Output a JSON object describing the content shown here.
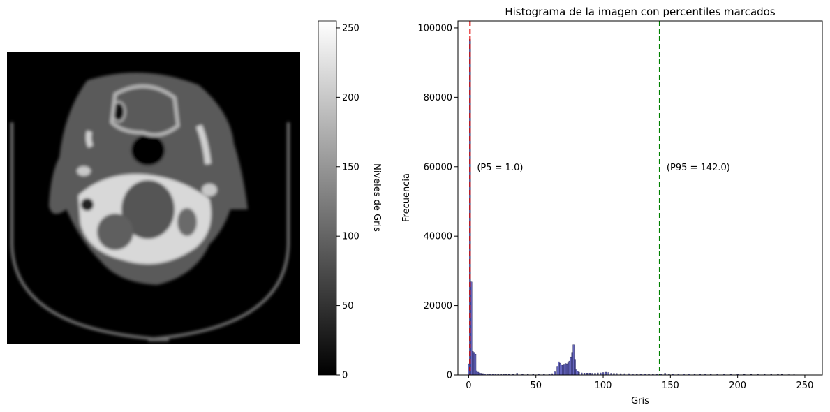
{
  "chart_data": [
    {
      "type": "image",
      "colorbar": {
        "label": "Niveles de Gris",
        "range": [
          0,
          255
        ],
        "ticks": [
          0,
          50,
          100,
          150,
          200,
          250
        ],
        "colormap": "gray"
      }
    },
    {
      "type": "bar",
      "title": "Histograma de la imagen con percentiles marcados",
      "xlabel": "Gris",
      "ylabel": "Frecuencia",
      "xlim": [
        -8,
        263
      ],
      "ylim": [
        0,
        102000
      ],
      "xticks": [
        0,
        50,
        100,
        150,
        200,
        250
      ],
      "yticks": [
        0,
        20000,
        40000,
        60000,
        80000,
        100000
      ],
      "bar_color": "#4b4bb4",
      "bar_edge": "#1a1a4a",
      "bins": [
        {
          "x": 0,
          "y": 3200
        },
        {
          "x": 1,
          "y": 96700
        },
        {
          "x": 2,
          "y": 26800
        },
        {
          "x": 3,
          "y": 7000
        },
        {
          "x": 4,
          "y": 6500
        },
        {
          "x": 5,
          "y": 6000
        },
        {
          "x": 6,
          "y": 1200
        },
        {
          "x": 7,
          "y": 800
        },
        {
          "x": 8,
          "y": 600
        },
        {
          "x": 9,
          "y": 500
        },
        {
          "x": 10,
          "y": 400
        },
        {
          "x": 11,
          "y": 400
        },
        {
          "x": 12,
          "y": 350
        },
        {
          "x": 14,
          "y": 300
        },
        {
          "x": 16,
          "y": 300
        },
        {
          "x": 18,
          "y": 250
        },
        {
          "x": 20,
          "y": 250
        },
        {
          "x": 22,
          "y": 250
        },
        {
          "x": 24,
          "y": 200
        },
        {
          "x": 26,
          "y": 200
        },
        {
          "x": 28,
          "y": 200
        },
        {
          "x": 30,
          "y": 200
        },
        {
          "x": 33,
          "y": 200
        },
        {
          "x": 36,
          "y": 500
        },
        {
          "x": 40,
          "y": 200
        },
        {
          "x": 44,
          "y": 200
        },
        {
          "x": 48,
          "y": 200
        },
        {
          "x": 52,
          "y": 200
        },
        {
          "x": 56,
          "y": 250
        },
        {
          "x": 60,
          "y": 300
        },
        {
          "x": 62,
          "y": 400
        },
        {
          "x": 64,
          "y": 900
        },
        {
          "x": 66,
          "y": 2500
        },
        {
          "x": 67,
          "y": 3800
        },
        {
          "x": 68,
          "y": 3400
        },
        {
          "x": 69,
          "y": 3000
        },
        {
          "x": 70,
          "y": 2800
        },
        {
          "x": 71,
          "y": 3100
        },
        {
          "x": 72,
          "y": 3300
        },
        {
          "x": 73,
          "y": 3200
        },
        {
          "x": 74,
          "y": 3500
        },
        {
          "x": 75,
          "y": 4000
        },
        {
          "x": 76,
          "y": 5200
        },
        {
          "x": 77,
          "y": 6500
        },
        {
          "x": 78,
          "y": 8700
        },
        {
          "x": 79,
          "y": 4500
        },
        {
          "x": 80,
          "y": 1500
        },
        {
          "x": 81,
          "y": 1000
        },
        {
          "x": 82,
          "y": 800
        },
        {
          "x": 84,
          "y": 600
        },
        {
          "x": 86,
          "y": 550
        },
        {
          "x": 88,
          "y": 550
        },
        {
          "x": 90,
          "y": 550
        },
        {
          "x": 92,
          "y": 500
        },
        {
          "x": 94,
          "y": 500
        },
        {
          "x": 96,
          "y": 600
        },
        {
          "x": 98,
          "y": 600
        },
        {
          "x": 100,
          "y": 700
        },
        {
          "x": 102,
          "y": 800
        },
        {
          "x": 104,
          "y": 700
        },
        {
          "x": 106,
          "y": 500
        },
        {
          "x": 108,
          "y": 450
        },
        {
          "x": 110,
          "y": 450
        },
        {
          "x": 113,
          "y": 400
        },
        {
          "x": 116,
          "y": 400
        },
        {
          "x": 119,
          "y": 400
        },
        {
          "x": 122,
          "y": 350
        },
        {
          "x": 125,
          "y": 350
        },
        {
          "x": 128,
          "y": 350
        },
        {
          "x": 131,
          "y": 350
        },
        {
          "x": 134,
          "y": 300
        },
        {
          "x": 137,
          "y": 300
        },
        {
          "x": 140,
          "y": 300
        },
        {
          "x": 143,
          "y": 300
        },
        {
          "x": 146,
          "y": 500
        },
        {
          "x": 149,
          "y": 300
        },
        {
          "x": 152,
          "y": 250
        },
        {
          "x": 156,
          "y": 250
        },
        {
          "x": 160,
          "y": 250
        },
        {
          "x": 164,
          "y": 250
        },
        {
          "x": 168,
          "y": 200
        },
        {
          "x": 172,
          "y": 200
        },
        {
          "x": 176,
          "y": 200
        },
        {
          "x": 180,
          "y": 200
        },
        {
          "x": 185,
          "y": 200
        },
        {
          "x": 190,
          "y": 200
        },
        {
          "x": 195,
          "y": 200
        },
        {
          "x": 200,
          "y": 200
        },
        {
          "x": 205,
          "y": 150
        },
        {
          "x": 210,
          "y": 150
        },
        {
          "x": 215,
          "y": 150
        },
        {
          "x": 220,
          "y": 150
        },
        {
          "x": 225,
          "y": 150
        },
        {
          "x": 230,
          "y": 150
        },
        {
          "x": 233,
          "y": 150
        },
        {
          "x": 238,
          "y": 100
        },
        {
          "x": 242,
          "y": 100
        }
      ],
      "percentiles": [
        {
          "label": "(P5 = 1.0)",
          "value": 1.0,
          "color": "#e00000",
          "label_y": 60000
        },
        {
          "label": "(P95 = 142.0)",
          "value": 142.0,
          "color": "#008000",
          "label_y": 60000
        }
      ]
    }
  ]
}
